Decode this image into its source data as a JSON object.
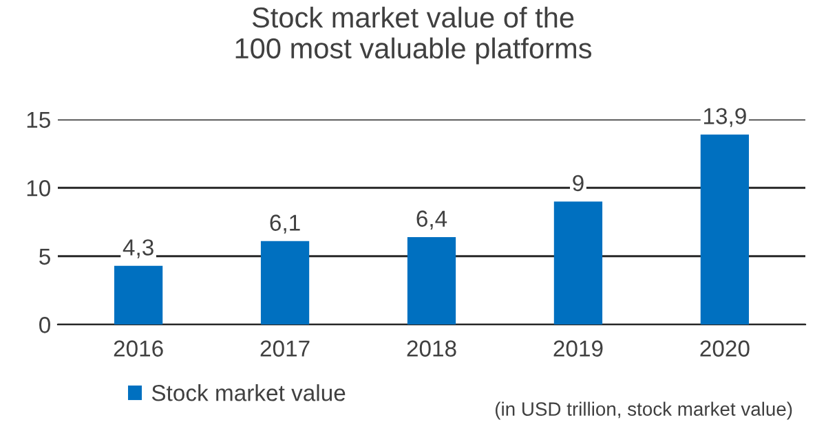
{
  "chart_data": {
    "type": "bar",
    "title": "Stock market value of the\n100 most valuable platforms",
    "categories": [
      "2016",
      "2017",
      "2018",
      "2019",
      "2020"
    ],
    "series": [
      {
        "name": "Stock market value",
        "color": "#0070c0",
        "values": [
          4.3,
          6.1,
          6.4,
          9,
          13.9
        ],
        "value_labels": [
          "4,3",
          "6,1",
          "6,4",
          "9",
          "13,9"
        ]
      }
    ],
    "ylim": [
      0,
      15
    ],
    "yticks": [
      0,
      5,
      10,
      15
    ],
    "grid": "y",
    "legend": "bottom left",
    "annotations": [
      "(in USD trillion, stock market value)"
    ]
  }
}
